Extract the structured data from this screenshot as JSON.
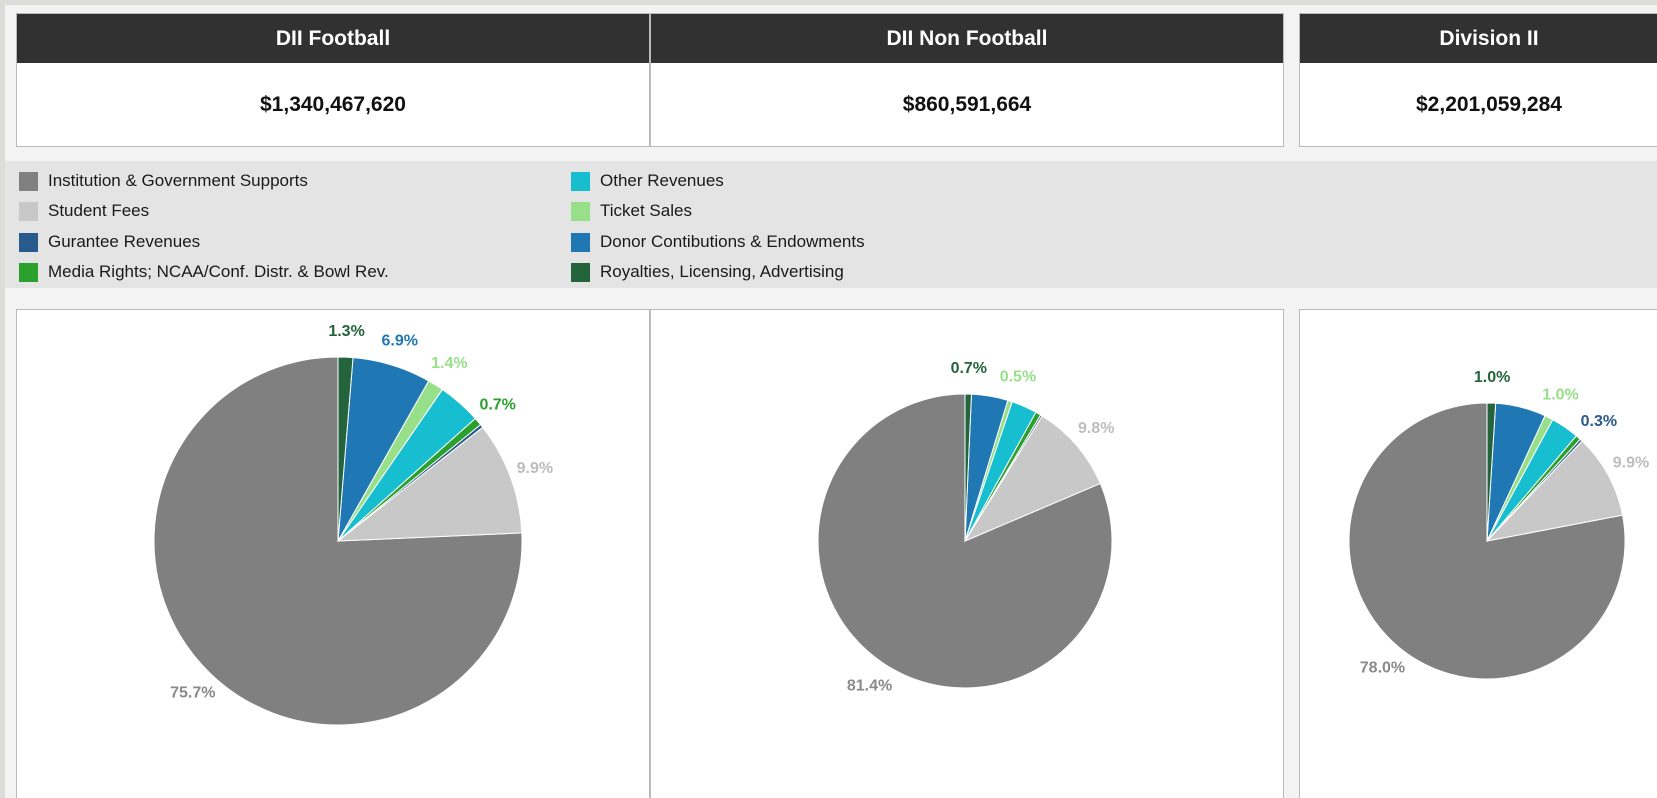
{
  "summary_cards": [
    {
      "title": "DII Football",
      "value": "$1,340,467,620"
    },
    {
      "title": "DII Non Football",
      "value": "$860,591,664"
    },
    {
      "title": "Division II",
      "value": "$2,201,059,284"
    }
  ],
  "legend": {
    "items": [
      {
        "label": "Institution & Government Supports",
        "color": "#808080"
      },
      {
        "label": "Student Fees",
        "color": "#c8c8c8"
      },
      {
        "label": "Gurantee Revenues",
        "color": "#285a8c"
      },
      {
        "label": "Media Rights; NCAA/Conf. Distr. & Bowl Rev.",
        "color": "#2ca02c"
      },
      {
        "label": "Other Revenues",
        "color": "#17becf"
      },
      {
        "label": "Ticket Sales",
        "color": "#98df8a"
      },
      {
        "label": "Donor Contibutions & Endowments",
        "color": "#1f77b4"
      },
      {
        "label": "Royalties, Licensing, Advertising",
        "color": "#23643c"
      }
    ]
  },
  "chart_data": [
    {
      "type": "pie",
      "title": "DII Football",
      "slices": [
        {
          "label": "Institution & Government Supports",
          "value": 75.7,
          "color": "#808080",
          "display": "75.7%"
        },
        {
          "label": "Student Fees",
          "value": 9.9,
          "color": "#c8c8c8",
          "display": "9.9%"
        },
        {
          "label": "Gurantee Revenues",
          "value": 0.3,
          "color": "#285a8c",
          "display": ""
        },
        {
          "label": "Media Rights; NCAA/Conf. Distr. & Bowl Rev.",
          "value": 0.7,
          "color": "#2ca02c",
          "display": "0.7%"
        },
        {
          "label": "Other Revenues",
          "value": 3.8,
          "color": "#17becf",
          "display": ""
        },
        {
          "label": "Ticket Sales",
          "value": 1.4,
          "color": "#98df8a",
          "display": "1.4%"
        },
        {
          "label": "Donor Contibutions & Endowments",
          "value": 6.9,
          "color": "#1f77b4",
          "display": "6.9%"
        },
        {
          "label": "Royalties, Licensing, Advertising",
          "value": 1.3,
          "color": "#23643c",
          "display": "1.3%"
        }
      ]
    },
    {
      "type": "pie",
      "title": "DII Non Football",
      "slices": [
        {
          "label": "Institution & Government Supports",
          "value": 81.4,
          "color": "#808080",
          "display": "81.4%"
        },
        {
          "label": "Student Fees",
          "value": 9.8,
          "color": "#c8c8c8",
          "display": "9.8%"
        },
        {
          "label": "Gurantee Revenues",
          "value": 0.2,
          "color": "#285a8c",
          "display": ""
        },
        {
          "label": "Media Rights; NCAA/Conf. Distr. & Bowl Rev.",
          "value": 0.6,
          "color": "#2ca02c",
          "display": ""
        },
        {
          "label": "Other Revenues",
          "value": 2.8,
          "color": "#17becf",
          "display": ""
        },
        {
          "label": "Ticket Sales",
          "value": 0.5,
          "color": "#98df8a",
          "display": "0.5%"
        },
        {
          "label": "Donor Contibutions & Endowments",
          "value": 4.0,
          "color": "#1f77b4",
          "display": ""
        },
        {
          "label": "Royalties, Licensing, Advertising",
          "value": 0.7,
          "color": "#23643c",
          "display": "0.7%"
        }
      ]
    },
    {
      "type": "pie",
      "title": "Division II",
      "slices": [
        {
          "label": "Institution & Government Supports",
          "value": 78.0,
          "color": "#808080",
          "display": "78.0%"
        },
        {
          "label": "Student Fees",
          "value": 9.9,
          "color": "#c8c8c8",
          "display": "9.9%"
        },
        {
          "label": "Gurantee Revenues",
          "value": 0.3,
          "color": "#285a8c",
          "display": "0.3%"
        },
        {
          "label": "Media Rights; NCAA/Conf. Distr. & Bowl Rev.",
          "value": 0.6,
          "color": "#2ca02c",
          "display": ""
        },
        {
          "label": "Other Revenues",
          "value": 3.3,
          "color": "#17becf",
          "display": ""
        },
        {
          "label": "Ticket Sales",
          "value": 1.0,
          "color": "#98df8a",
          "display": "1.0%"
        },
        {
          "label": "Donor Contibutions & Endowments",
          "value": 5.9,
          "color": "#1f77b4",
          "display": ""
        },
        {
          "label": "Royalties, Licensing, Advertising",
          "value": 1.0,
          "color": "#23643c",
          "display": "1.0%"
        }
      ]
    }
  ]
}
